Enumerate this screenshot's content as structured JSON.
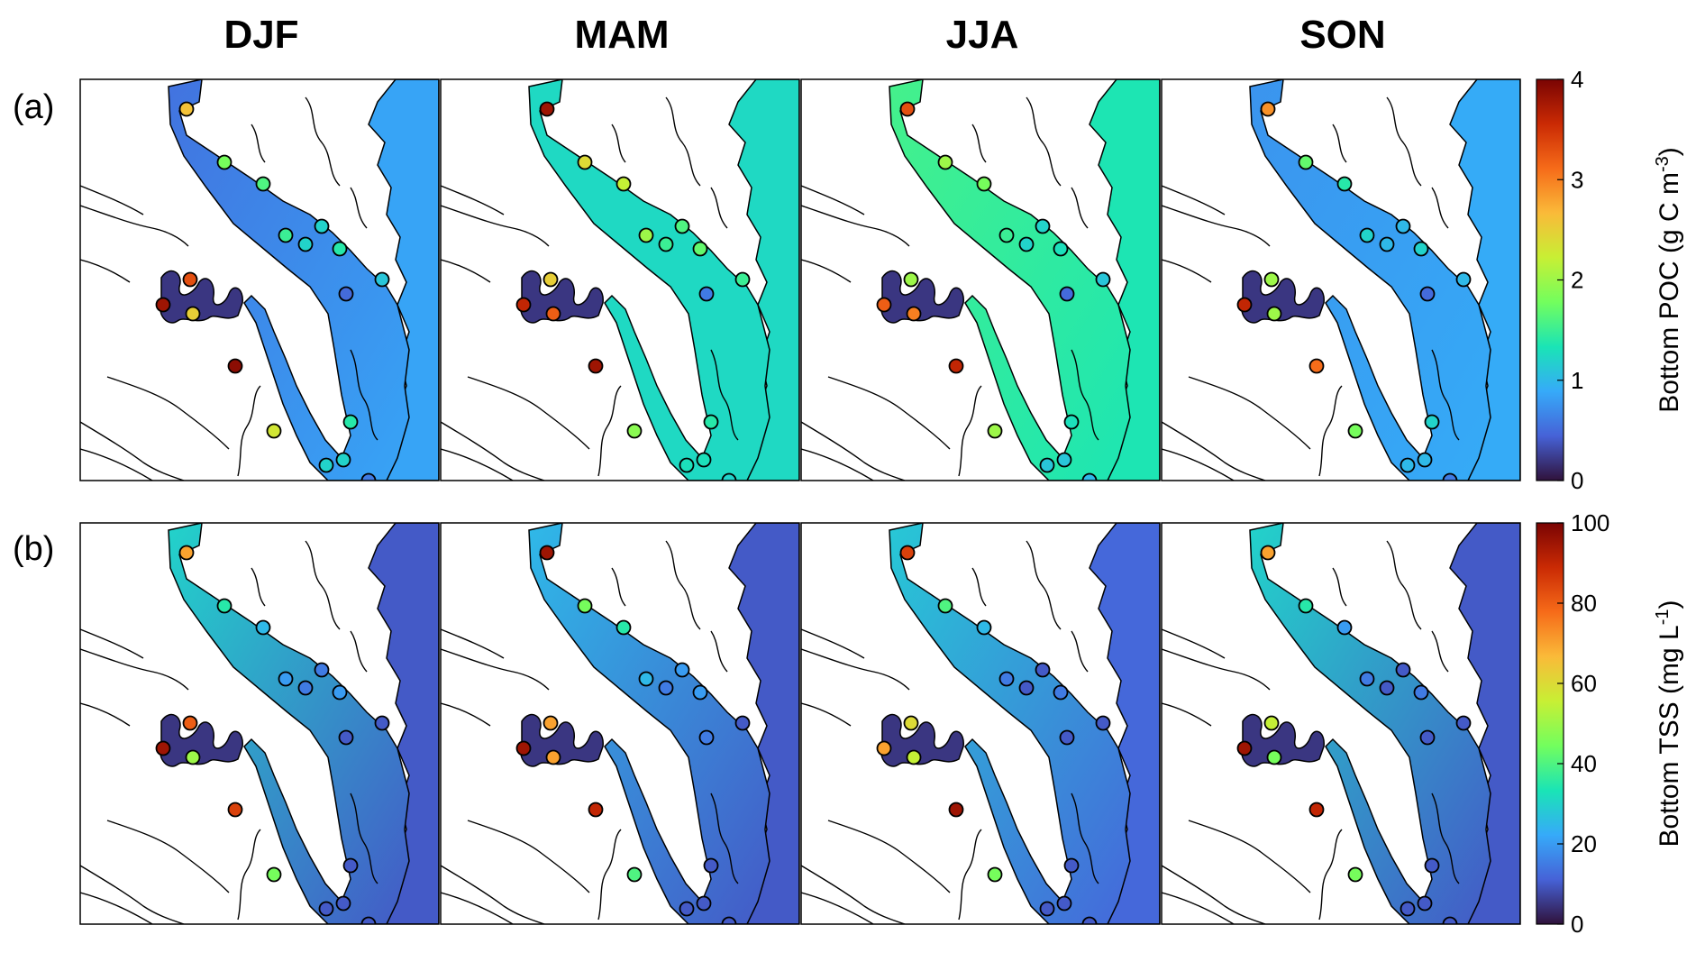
{
  "seasons": [
    "DJF",
    "MAM",
    "JJA",
    "SON"
  ],
  "rows": [
    {
      "label": "(a)",
      "quantity": "Bottom POC",
      "unit_label": "Bottom POC (g C m",
      "unit_sup": "-3",
      "unit_close": ")",
      "colorbar": {
        "min": 0,
        "max": 4,
        "ticks": [
          "0",
          "1",
          "2",
          "3",
          "4"
        ]
      },
      "season_background": [
        0.85,
        1.25,
        1.35,
        0.9
      ],
      "season_channel": [
        0.55,
        1.25,
        1.55,
        0.75
      ]
    },
    {
      "label": "(b)",
      "quantity": "Bottom TSS",
      "unit_label": "Bottom TSS (mg L",
      "unit_sup": "-1",
      "unit_close": ")",
      "colorbar": {
        "min": 0,
        "max": 100,
        "ticks": [
          "0",
          "20",
          "40",
          "60",
          "80",
          "100"
        ]
      },
      "season_background": [
        10,
        10,
        12,
        10
      ],
      "season_channel": [
        30,
        25,
        28,
        30
      ]
    }
  ],
  "colormap": [
    "#30123b",
    "#4662d7",
    "#36aaf9",
    "#1ae4b6",
    "#72fe5e",
    "#c8ef34",
    "#faba39",
    "#f66b19",
    "#ca2a04",
    "#7a0403"
  ],
  "stations": [
    {
      "id": "s1",
      "poc": [
        2.6,
        3.8,
        3.3,
        2.9
      ],
      "tss": [
        70,
        95,
        85,
        70
      ]
    },
    {
      "id": "s2",
      "poc": [
        1.8,
        2.4,
        2.0,
        1.7
      ],
      "tss": [
        35,
        45,
        40,
        35
      ]
    },
    {
      "id": "s3",
      "poc": [
        1.6,
        2.2,
        1.8,
        1.4
      ],
      "tss": [
        25,
        35,
        25,
        20
      ]
    },
    {
      "id": "s4",
      "poc": [
        1.5,
        2.0,
        1.5,
        1.2
      ],
      "tss": [
        20,
        25,
        15,
        15
      ]
    },
    {
      "id": "s5",
      "poc": [
        1.2,
        1.6,
        1.2,
        1.0
      ],
      "tss": [
        15,
        20,
        10,
        10
      ]
    },
    {
      "id": "s6",
      "poc": [
        1.4,
        1.7,
        1.3,
        1.2
      ],
      "tss": [
        20,
        20,
        15,
        15
      ]
    },
    {
      "id": "s7",
      "poc": [
        1.2,
        1.5,
        1.2,
        1.0
      ],
      "tss": [
        15,
        15,
        10,
        10
      ]
    },
    {
      "id": "s8",
      "poc": [
        1.1,
        1.5,
        1.1,
        1.0
      ],
      "tss": [
        10,
        10,
        10,
        10
      ]
    },
    {
      "id": "s9",
      "poc": [
        0.5,
        0.6,
        0.5,
        0.5
      ],
      "tss": [
        10,
        15,
        10,
        10
      ]
    },
    {
      "id": "s10",
      "poc": [
        3.3,
        2.5,
        2.0,
        2.0
      ],
      "tss": [
        80,
        70,
        60,
        55
      ]
    },
    {
      "id": "s11",
      "poc": [
        3.8,
        3.6,
        3.2,
        3.6
      ],
      "tss": [
        95,
        95,
        70,
        95
      ]
    },
    {
      "id": "s12",
      "poc": [
        2.5,
        3.2,
        3.0,
        2.0
      ],
      "tss": [
        50,
        70,
        55,
        45
      ]
    },
    {
      "id": "s13",
      "poc": [
        3.9,
        3.8,
        3.6,
        3.1
      ],
      "tss": [
        85,
        90,
        95,
        90
      ]
    },
    {
      "id": "s14",
      "poc": [
        2.3,
        1.9,
        2.0,
        1.8
      ],
      "tss": [
        45,
        40,
        45,
        45
      ]
    },
    {
      "id": "s15",
      "poc": [
        1.4,
        1.4,
        1.3,
        1.2
      ],
      "tss": [
        10,
        10,
        10,
        10
      ]
    },
    {
      "id": "s16",
      "poc": [
        1.2,
        1.3,
        1.1,
        1.0
      ],
      "tss": [
        10,
        10,
        10,
        10
      ]
    },
    {
      "id": "s17",
      "poc": [
        1.2,
        1.3,
        1.1,
        1.0
      ],
      "tss": [
        10,
        10,
        10,
        10
      ]
    },
    {
      "id": "s18",
      "poc": [
        0.6,
        1.2,
        1.0,
        0.6
      ],
      "tss": [
        10,
        10,
        10,
        10
      ]
    }
  ]
}
